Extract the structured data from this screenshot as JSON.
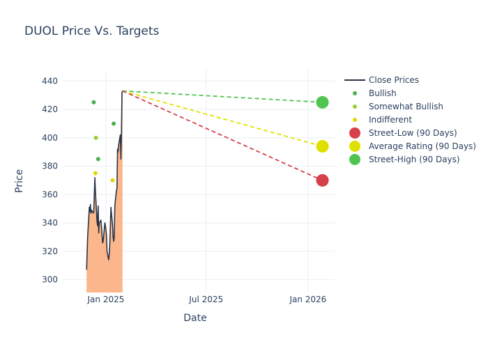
{
  "chart_data": {
    "type": "line",
    "title": "DUOL Price Vs. Targets",
    "xlabel": "Date",
    "ylabel": "Price",
    "xlim": [
      "2024-10-15",
      "2026-02-18"
    ],
    "ylim": [
      291,
      448
    ],
    "x_ticks": [
      {
        "date": "2025-01-01",
        "label": "Jan 2025"
      },
      {
        "date": "2025-07-01",
        "label": "Jul 2025"
      },
      {
        "date": "2026-01-01",
        "label": "Jan 2026"
      }
    ],
    "y_ticks": [
      300,
      320,
      340,
      360,
      380,
      400,
      420,
      440
    ],
    "grid": true,
    "legend_position": "right",
    "colors": {
      "close_line": "#2a3447",
      "area_fill": "#fcb68b",
      "bullish": "#4caf50",
      "somewhat_bullish": "#9acd32",
      "indifferent": "#e0d700",
      "street_low": "#d6404a",
      "average": "#e0e000",
      "street_high": "#50c450"
    },
    "close_prices": {
      "name": "Close Prices",
      "points": [
        [
          "2024-11-27",
          307
        ],
        [
          "2024-11-29",
          330
        ],
        [
          "2024-12-02",
          351
        ],
        [
          "2024-12-03",
          348
        ],
        [
          "2024-12-04",
          353
        ],
        [
          "2024-12-05",
          347
        ],
        [
          "2024-12-06",
          349
        ],
        [
          "2024-12-09",
          347
        ],
        [
          "2024-12-10",
          348
        ],
        [
          "2024-12-11",
          360
        ],
        [
          "2024-12-12",
          372
        ],
        [
          "2024-12-13",
          362
        ],
        [
          "2024-12-16",
          341
        ],
        [
          "2024-12-17",
          338
        ],
        [
          "2024-12-18",
          352
        ],
        [
          "2024-12-19",
          333
        ],
        [
          "2024-12-20",
          340
        ],
        [
          "2024-12-23",
          342
        ],
        [
          "2024-12-24",
          337
        ],
        [
          "2024-12-26",
          326
        ],
        [
          "2024-12-27",
          327
        ],
        [
          "2024-12-30",
          340
        ],
        [
          "2024-12-31",
          338
        ],
        [
          "2025-01-02",
          332
        ],
        [
          "2025-01-03",
          320
        ],
        [
          "2025-01-06",
          314
        ],
        [
          "2025-01-07",
          318
        ],
        [
          "2025-01-08",
          325
        ],
        [
          "2025-01-10",
          351
        ],
        [
          "2025-01-13",
          338
        ],
        [
          "2025-01-14",
          330
        ],
        [
          "2025-01-15",
          327
        ],
        [
          "2025-01-16",
          330
        ],
        [
          "2025-01-17",
          352
        ],
        [
          "2025-01-20",
          363
        ],
        [
          "2025-01-21",
          364
        ],
        [
          "2025-01-22",
          392
        ],
        [
          "2025-01-23",
          390
        ],
        [
          "2025-01-24",
          395
        ],
        [
          "2025-01-27",
          402
        ],
        [
          "2025-01-28",
          385
        ],
        [
          "2025-01-29",
          403
        ],
        [
          "2025-01-30",
          432
        ],
        [
          "2025-01-31",
          433
        ]
      ]
    },
    "ratings": [
      {
        "name": "Bullish",
        "color_key": "bullish",
        "points": [
          [
            "2024-12-10",
            425
          ],
          [
            "2025-01-15",
            410
          ],
          [
            "2024-12-18",
            385
          ]
        ]
      },
      {
        "name": "Somewhat Bullish",
        "color_key": "somewhat_bullish",
        "points": [
          [
            "2024-12-14",
            400
          ]
        ]
      },
      {
        "name": "Indifferent",
        "color_key": "indifferent",
        "points": [
          [
            "2024-12-13",
            375
          ],
          [
            "2025-01-13",
            370
          ]
        ]
      }
    ],
    "targets": {
      "start": [
        "2025-01-31",
        433
      ],
      "end_date": "2026-01-27",
      "street_low": {
        "name": "Street-Low (90 Days)",
        "value": 370
      },
      "average": {
        "name": "Average Rating (90 Days)",
        "value": 394
      },
      "street_high": {
        "name": "Street-High (90 Days)",
        "value": 425
      }
    }
  }
}
